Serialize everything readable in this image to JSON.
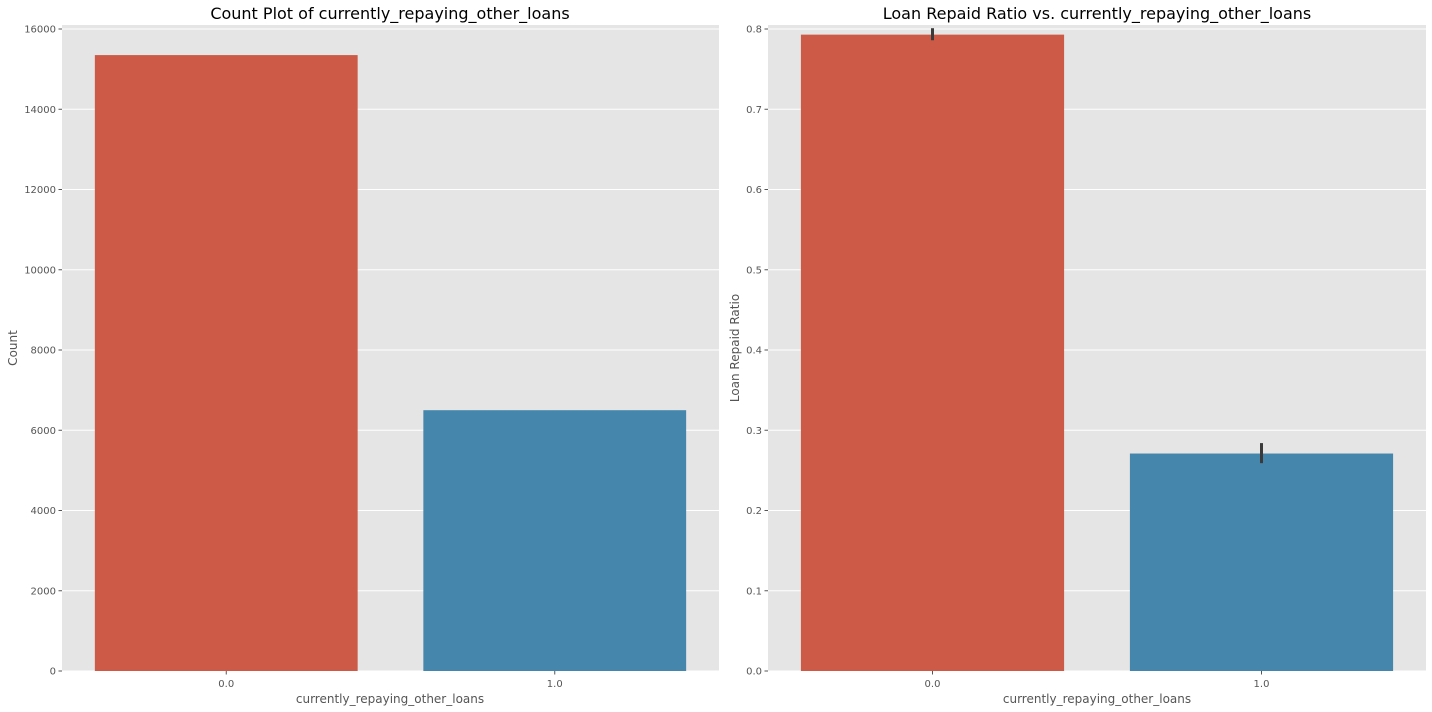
{
  "chart_data": [
    {
      "type": "bar",
      "title": "Count Plot of currently_repaying_other_loans",
      "xlabel": "currently_repaying_other_loans",
      "ylabel": "Count",
      "categories": [
        "0.0",
        "1.0"
      ],
      "values": [
        15350,
        6500
      ],
      "ylim": [
        0,
        16100
      ],
      "yticks": [
        0,
        2000,
        4000,
        6000,
        8000,
        10000,
        12000,
        14000,
        16000
      ],
      "ytick_labels": [
        "0",
        "2000",
        "4000",
        "6000",
        "8000",
        "10000",
        "12000",
        "14000",
        "16000"
      ],
      "colors": [
        "#cc5a47",
        "#4586ad"
      ],
      "grid": true
    },
    {
      "type": "bar",
      "title": "Loan Repaid Ratio vs. currently_repaying_other_loans",
      "xlabel": "currently_repaying_other_loans",
      "ylabel": "Loan Repaid Ratio",
      "categories": [
        "0.0",
        "1.0"
      ],
      "values": [
        0.793,
        0.271
      ],
      "error_low": [
        0.786,
        0.259
      ],
      "error_high": [
        0.801,
        0.284
      ],
      "ylim": [
        0,
        0.805
      ],
      "yticks": [
        0,
        0.1,
        0.2,
        0.3,
        0.4,
        0.5,
        0.6,
        0.7,
        0.8
      ],
      "ytick_labels": [
        "0.0",
        "0.1",
        "0.2",
        "0.3",
        "0.4",
        "0.5",
        "0.6",
        "0.7",
        "0.8"
      ],
      "colors": [
        "#cc5a47",
        "#4586ad"
      ],
      "grid": true
    }
  ]
}
